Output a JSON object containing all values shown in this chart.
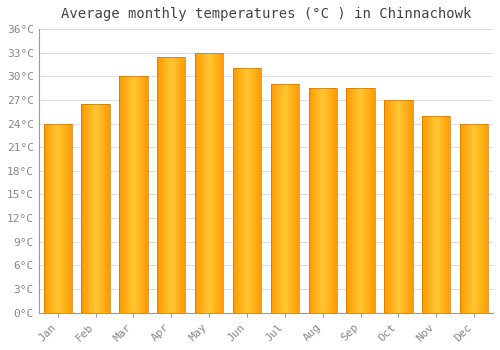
{
  "title": "Average monthly temperatures (°C ) in Chinnachowk",
  "months": [
    "Jan",
    "Feb",
    "Mar",
    "Apr",
    "May",
    "Jun",
    "Jul",
    "Aug",
    "Sep",
    "Oct",
    "Nov",
    "Dec"
  ],
  "values": [
    24,
    26.5,
    30,
    32.5,
    33,
    31,
    29,
    28.5,
    28.5,
    27,
    25,
    24
  ],
  "bar_color_main": "#FFA500",
  "bar_color_light": "#FFD060",
  "bar_color_dark": "#E08000",
  "background_color": "#FFFFFF",
  "grid_color": "#DDDDDD",
  "ytick_interval": 3,
  "ymin": 0,
  "ymax": 36,
  "title_fontsize": 10,
  "tick_fontsize": 8,
  "font_family": "monospace",
  "tick_color": "#888888",
  "spine_color": "#999999"
}
